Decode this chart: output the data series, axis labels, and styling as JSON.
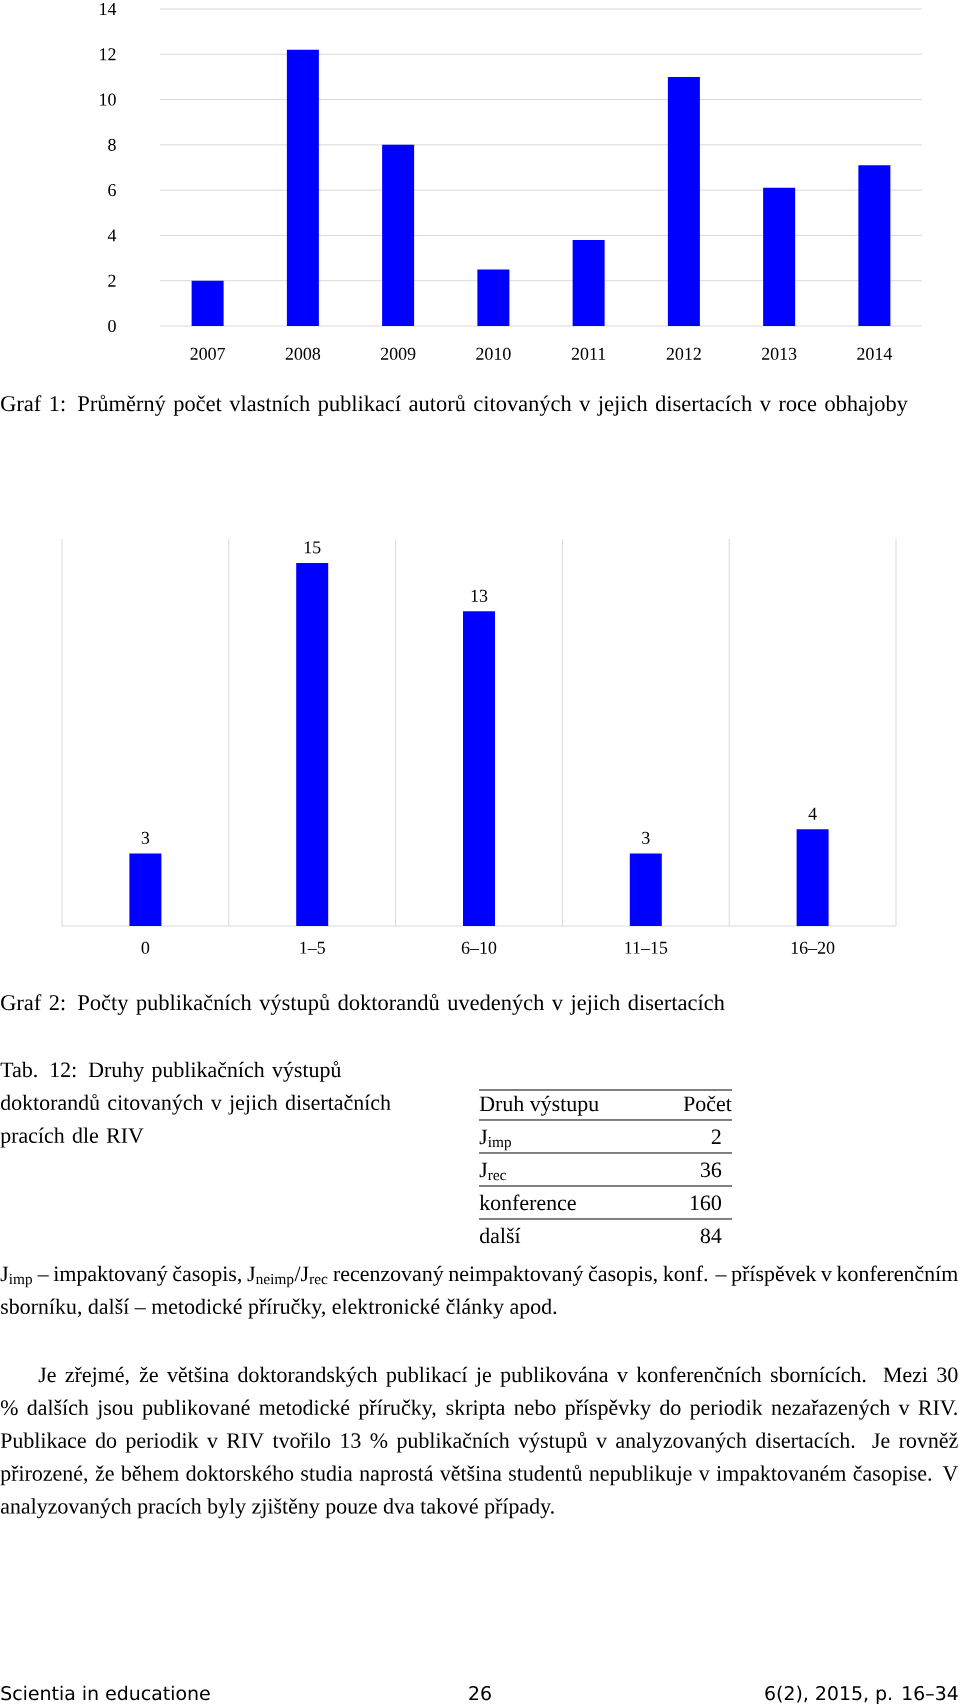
{
  "chart_data": [
    {
      "type": "bar",
      "title": "Graf 1: Průměrný počet vlastních publikací autorů citovaných v jejich disertacích v roce obhajoby",
      "categories": [
        "2007",
        "2008",
        "2009",
        "2010",
        "2011",
        "2012",
        "2013",
        "2014"
      ],
      "values": [
        2.0,
        12.2,
        8.0,
        2.5,
        3.8,
        11.0,
        6.1,
        7.1
      ],
      "color": "#0000ff",
      "ylim": [
        0,
        14
      ],
      "yticks": [
        0,
        2,
        4,
        6,
        8,
        10,
        12,
        14
      ],
      "grid": "y"
    },
    {
      "type": "bar",
      "title": "Graf 2: Počty publikačních výstupů doktorandů uvedených v jejich disertacích",
      "categories": [
        "0",
        "1–5",
        "6–10",
        "11–15",
        "16–20"
      ],
      "values": [
        3,
        15,
        13,
        3,
        4
      ],
      "color": "#0000ff",
      "data_labels": true,
      "grid": "x"
    },
    {
      "type": "other",
      "title": "Tab. 12: Druhy publikačních výstupů doktorandů citovaných v jejich disertačních pracích dle RIV",
      "xlabel": "Druh výstupu",
      "ylabel": "Počet",
      "categories": [
        "J$_{imp}$",
        "J$_{rec}$",
        "konference",
        "další"
      ],
      "values": [
        2,
        36,
        160,
        84
      ],
      "data_labels": true,
      "annotations": [
        "J$_{imp}$ – impaktovaný časopis, J$_{neimp}$/J$_{rec}$ recenzovaný neimpaktovaný časopis, konf. – příspěvek v konferenčním sborníku, další – metodické příručky, elektronické články apod.",
        "Je zřejmé, že většina doktorandských publikací je publikována v konferenčních sbornících. Mezi 30 % dalších jsou publikované metodické příručky, skripta nebo příspěvky do periodik nezařazených v RIV. Publikace do periodik v RIV tvořilo 13 % publikačních výstupů v analyzovaných disertacích. Je rovněž přirozené, že během doktorského studia naprostá většina studentů nepublikuje v impaktovaném časopise. V analyzovaných pracích byly zjištěny pouze dva takové případy.",
        "Scientia in educatione",
        "26",
        "6(2), 2015, p. 16–34"
      ]
    }
  ]
}
